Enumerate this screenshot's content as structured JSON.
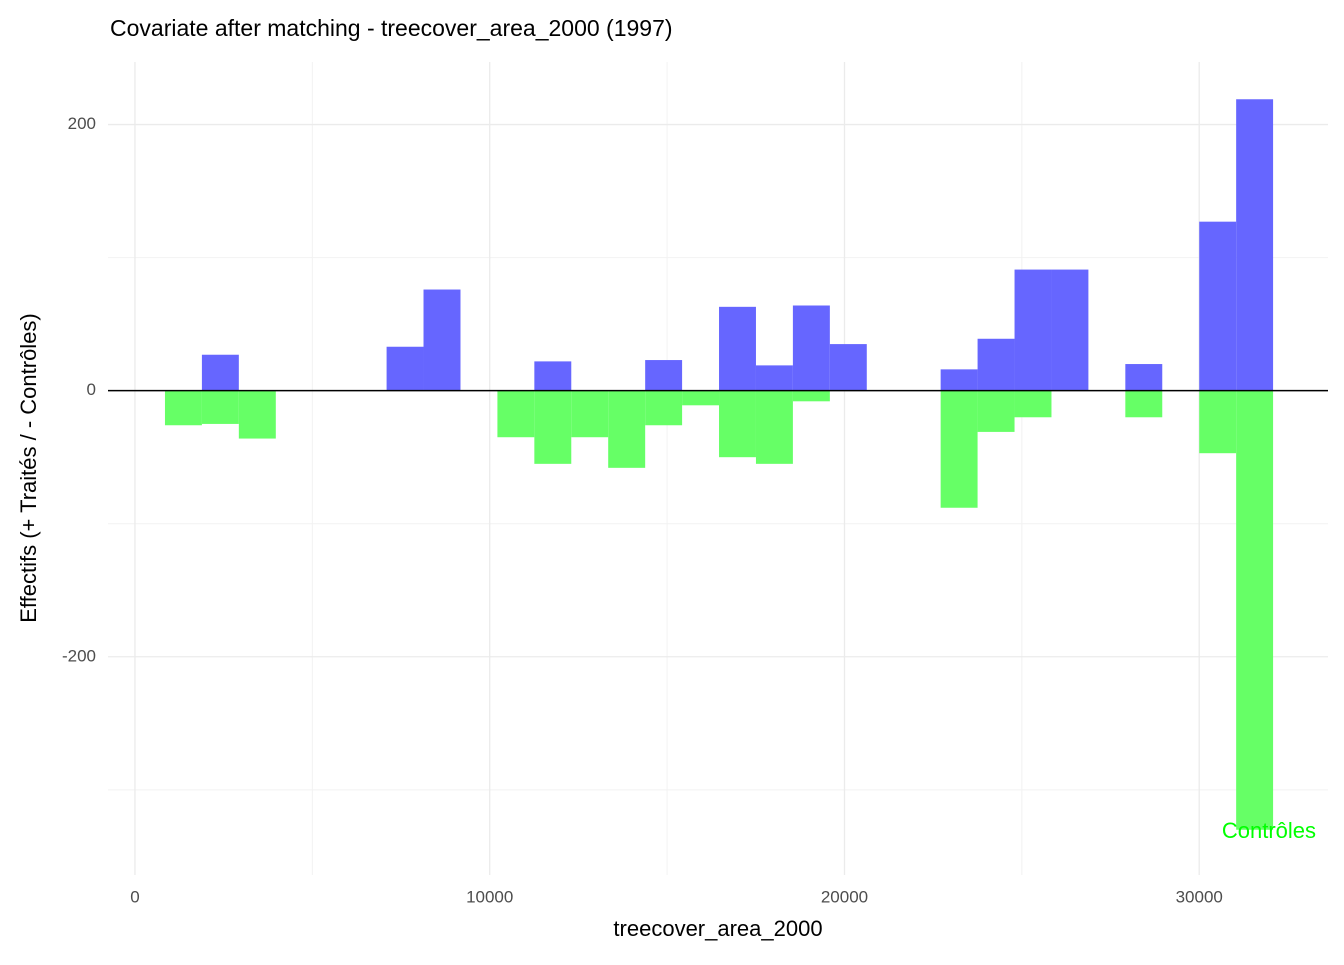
{
  "chart_data": {
    "type": "mirrored_histogram",
    "title": "Covariate after matching - treecover_area_2000 (1997)",
    "x_label": "treecover_area_2000",
    "y_label": "Effectifs (+ Traités / - Contrôles)",
    "bins": [
      846,
      1887,
      2928,
      3970,
      5011,
      6052,
      7093,
      8134,
      9176,
      10217,
      11258,
      12299,
      13340,
      14382,
      15423,
      16464,
      17505,
      18546,
      19588,
      20629,
      21670,
      22711,
      23752,
      24794,
      25835,
      26876,
      27917,
      28958,
      30000,
      31041,
      32082
    ],
    "series": [
      {
        "color": "#6666ff",
        "values": [
          0,
          27,
          0,
          0,
          0,
          0,
          33,
          76,
          0,
          0,
          22,
          0,
          0,
          23,
          0,
          63,
          19,
          64,
          35,
          0,
          0,
          16,
          39,
          91,
          91,
          0,
          20,
          0,
          127,
          219
        ]
      },
      {
        "color": "#66ff66",
        "values": [
          -26,
          -25,
          -36,
          0,
          0,
          0,
          0,
          0,
          0,
          -35,
          -55,
          -35,
          -58,
          -26,
          -11,
          -50,
          -55,
          -8,
          0,
          0,
          0,
          -88,
          -31,
          -20,
          0,
          0,
          -20,
          0,
          -47,
          -330
        ]
      }
    ],
    "annotation": {
      "text": "Contrôles",
      "color": "#00ff00"
    },
    "xlim": [
      -760,
      33630
    ],
    "ylim": [
      -364,
      247
    ],
    "xticks": [
      0,
      10000,
      20000,
      30000
    ],
    "xticks_minor": [
      5000,
      15000,
      25000
    ],
    "yticks": [
      -200,
      0,
      200
    ],
    "yticks_minor": [
      -300,
      -100,
      100
    ],
    "grid": true
  }
}
